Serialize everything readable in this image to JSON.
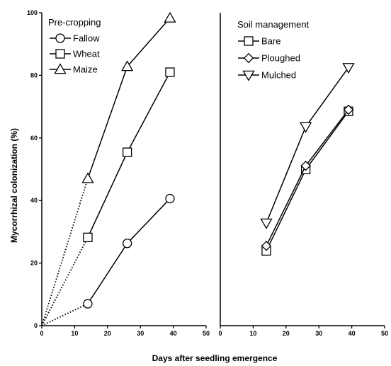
{
  "chart_data": {
    "type": "line",
    "xlabel": "Days after seedling emergence",
    "ylabel": "Mycorrhizal colonization (%)",
    "panels": [
      {
        "legend_title": "Pre-cropping",
        "legend_position": "top-left",
        "xlim": [
          0,
          50
        ],
        "ylim": [
          0,
          100
        ],
        "x_ticks": [
          0,
          10,
          20,
          30,
          40,
          50
        ],
        "y_ticks": [
          0,
          20,
          40,
          60,
          80,
          100
        ],
        "series": [
          {
            "name": "Fallow",
            "marker": "circle",
            "x": [
              14,
              26,
              39
            ],
            "y": [
              7,
              26.3,
              40.6
            ],
            "origin_dotted": true
          },
          {
            "name": "Wheat",
            "marker": "square",
            "x": [
              14,
              26,
              39
            ],
            "y": [
              28.2,
              55.4,
              81
            ],
            "origin_dotted": true
          },
          {
            "name": "Maize",
            "marker": "triangle-up",
            "x": [
              14,
              26,
              39
            ],
            "y": [
              47,
              82.8,
              98.3
            ],
            "origin_dotted": true
          }
        ]
      },
      {
        "legend_title": "Soil management",
        "legend_position": "top-left",
        "xlim": [
          0,
          50
        ],
        "ylim": [
          0,
          100
        ],
        "x_ticks": [
          0,
          10,
          20,
          30,
          40,
          50
        ],
        "series": [
          {
            "name": "Bare",
            "marker": "square",
            "x": [
              14,
              26,
              39
            ],
            "y": [
              23.9,
              49.9,
              68.5
            ]
          },
          {
            "name": "Ploughed",
            "marker": "diamond",
            "x": [
              14,
              26,
              39
            ],
            "y": [
              25.5,
              51.1,
              69
            ]
          },
          {
            "name": "Mulched",
            "marker": "triangle-down",
            "x": [
              14,
              26,
              39
            ],
            "y": [
              32.8,
              63.6,
              82.5
            ]
          }
        ]
      }
    ]
  }
}
